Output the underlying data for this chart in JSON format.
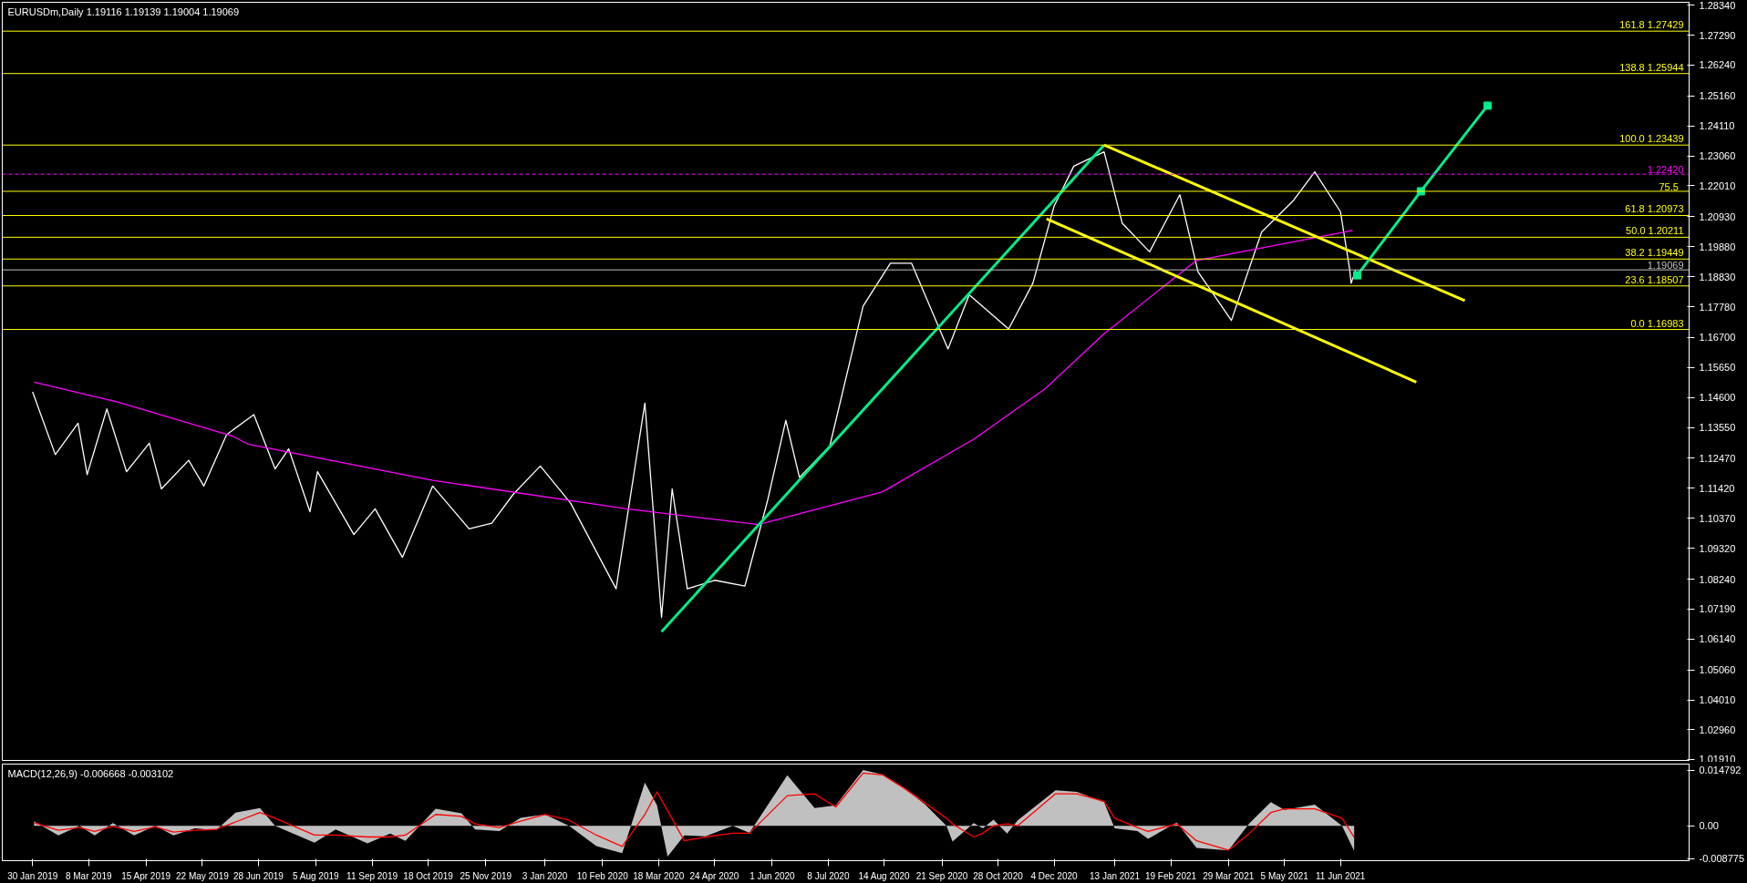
{
  "chart_data": [
    {
      "type": "line",
      "title": "EURUSDm,Daily  1.19116 1.19139 1.19004 1.19069",
      "xlim": [
        "2019-01-10",
        "2022-01-27"
      ],
      "ylim": [
        1.0189,
        1.2844
      ],
      "yticks": [
        {
          "value": 1.2834,
          "label": "1.28340"
        },
        {
          "value": 1.2729,
          "label": "1.27290"
        },
        {
          "value": 1.2624,
          "label": "1.26240"
        },
        {
          "value": 1.2516,
          "label": "1.25160"
        },
        {
          "value": 1.2411,
          "label": "1.24110"
        },
        {
          "value": 1.2306,
          "label": "1.23060"
        },
        {
          "value": 1.2201,
          "label": "1.22010"
        },
        {
          "value": 1.2093,
          "label": "1.20930"
        },
        {
          "value": 1.1988,
          "label": "1.19880"
        },
        {
          "value": 1.1883,
          "label": "1.18830"
        },
        {
          "value": 1.1778,
          "label": "1.17780"
        },
        {
          "value": 1.167,
          "label": "1.16700"
        },
        {
          "value": 1.1565,
          "label": "1.15650"
        },
        {
          "value": 1.146,
          "label": "1.14600"
        },
        {
          "value": 1.1355,
          "label": "1.13550"
        },
        {
          "value": 1.1247,
          "label": "1.12470"
        },
        {
          "value": 1.1142,
          "label": "1.11420"
        },
        {
          "value": 1.1037,
          "label": "1.10370"
        },
        {
          "value": 1.0932,
          "label": "1.09320"
        },
        {
          "value": 1.0824,
          "label": "1.08240"
        },
        {
          "value": 1.0719,
          "label": "1.07190"
        },
        {
          "value": 1.0614,
          "label": "1.06140"
        },
        {
          "value": 1.0506,
          "label": "1.05060"
        },
        {
          "value": 1.0401,
          "label": "1.04010"
        },
        {
          "value": 1.0296,
          "label": "1.02960"
        },
        {
          "value": 1.0191,
          "label": "1.01910"
        }
      ],
      "tick_labels": "y",
      "grid": false,
      "annotations": [
        {
          "text": "75.5",
          "x": "2022-01-20",
          "y": 1.2182
        }
      ],
      "series": [
        {
          "color": "#ffffff",
          "x": [
            "2019-01-30",
            "2019-02-14",
            "2019-03-01",
            "2019-03-07",
            "2019-03-20",
            "2019-04-02",
            "2019-04-17",
            "2019-04-25",
            "2019-05-13",
            "2019-05-23",
            "2019-06-07",
            "2019-06-25",
            "2019-07-09",
            "2019-07-18",
            "2019-08-01",
            "2019-08-06",
            "2019-08-30",
            "2019-09-13",
            "2019-10-01",
            "2019-10-21",
            "2019-11-14",
            "2019-11-29",
            "2019-12-13",
            "2019-12-31",
            "2020-01-20",
            "2020-02-19",
            "2020-03-09",
            "2020-03-20",
            "2020-03-27",
            "2020-04-06",
            "2020-04-24",
            "2020-05-14",
            "2020-05-29",
            "2020-06-10",
            "2020-06-19",
            "2020-07-09",
            "2020-07-31",
            "2020-08-18",
            "2020-09-01",
            "2020-09-25",
            "2020-10-09",
            "2020-11-04",
            "2020-11-20",
            "2020-12-04",
            "2020-12-17",
            "2021-01-06",
            "2021-01-18",
            "2021-02-05",
            "2021-02-25",
            "2021-03-09",
            "2021-03-31",
            "2021-04-20",
            "2021-05-11",
            "2021-05-25",
            "2021-06-11",
            "2021-06-17",
            "2021-06-18",
            "2021-06-21"
          ],
          "values": [
            1.148,
            1.126,
            1.137,
            1.119,
            1.142,
            1.12,
            1.13,
            1.114,
            1.124,
            1.115,
            1.133,
            1.14,
            1.121,
            1.128,
            1.106,
            1.12,
            1.098,
            1.107,
            1.09,
            1.115,
            1.1,
            1.102,
            1.112,
            1.122,
            1.109,
            1.079,
            1.144,
            1.069,
            1.114,
            1.079,
            1.082,
            1.08,
            1.11,
            1.138,
            1.118,
            1.129,
            1.178,
            1.193,
            1.193,
            1.163,
            1.182,
            1.17,
            1.186,
            1.213,
            1.227,
            1.232,
            1.207,
            1.197,
            1.217,
            1.19,
            1.173,
            1.204,
            1.215,
            1.225,
            1.211,
            1.191,
            1.186,
            1.19069
          ]
        },
        {
          "color": "#ff00ff",
          "x": [
            "2019-01-31",
            "2019-03-27",
            "2019-06-11",
            "2019-06-21",
            "2019-10-21",
            "2020-02-26",
            "2020-05-23",
            "2020-08-13",
            "2020-10-12",
            "2020-11-28",
            "2021-01-06",
            "2021-03-08",
            "2021-06-19"
          ],
          "values": [
            1.1514,
            1.1444,
            1.1325,
            1.1297,
            1.117,
            1.107,
            1.1015,
            1.113,
            1.1314,
            1.149,
            1.1683,
            1.194,
            1.2045
          ]
        },
        {
          "color": "#00ee88",
          "x": [
            "2020-03-20",
            "2021-01-06"
          ],
          "values": [
            1.064,
            1.2344
          ]
        },
        {
          "color": "#ffff00",
          "x": [
            "2021-01-06",
            "2021-09-01"
          ],
          "values": [
            1.2344,
            1.1799
          ]
        },
        {
          "color": "#ffff00",
          "x": [
            "2020-11-29",
            "2021-07-31"
          ],
          "values": [
            1.2086,
            1.1514
          ]
        },
        {
          "color": "#00ee88",
          "marker": "square",
          "x": [
            "2021-06-22",
            "2021-08-03",
            "2021-09-16"
          ],
          "values": [
            1.1888,
            1.2182,
            1.2482
          ]
        }
      ],
      "ref_lines": [
        {
          "axis": "y",
          "value": 1.27429,
          "label": "161.8 1.27429",
          "color": "#ffff00"
        },
        {
          "axis": "y",
          "value": 1.25944,
          "label": "138.8 1.25944",
          "color": "#ffff00"
        },
        {
          "axis": "y",
          "value": 1.23439,
          "label": "100.0 1.23439",
          "color": "#ffff00"
        },
        {
          "axis": "y",
          "value": 1.2182,
          "color": "#ffff00"
        },
        {
          "axis": "y",
          "value": 1.20973,
          "label": "61.8 1.20973",
          "color": "#ffff00"
        },
        {
          "axis": "y",
          "value": 1.20211,
          "label": "50.0 1.20211",
          "color": "#ffff00"
        },
        {
          "axis": "y",
          "value": 1.19449,
          "label": "38.2 1.19449",
          "color": "#ffff00"
        },
        {
          "axis": "y",
          "value": 1.18507,
          "label": "23.6 1.18507",
          "color": "#ffff00"
        },
        {
          "axis": "y",
          "value": 1.16983,
          "label": "0.0 1.16983",
          "color": "#ffff00"
        },
        {
          "axis": "y",
          "value": 1.2242,
          "label": "1.22420",
          "color": "#ff00ff",
          "line_style": "dashed"
        },
        {
          "axis": "y",
          "value": 1.19069,
          "label": "1.19069",
          "color": "#c0c0c0"
        }
      ]
    },
    {
      "type": "line",
      "title": "MACD(12,26,9) -0.006668 -0.003102",
      "xlim": [
        "2019-01-10",
        "2022-01-27"
      ],
      "ylim": [
        -0.0093,
        0.0164
      ],
      "yticks": [
        0.014792,
        {
          "value": 0,
          "label": "0.00"
        },
        -0.008775
      ],
      "grid": false,
      "xticks": [
        {
          "value": "2019-01-30",
          "label": "30 Jan 2019"
        },
        {
          "value": "2019-03-08",
          "label": "8 Mar 2019"
        },
        {
          "value": "2019-04-15",
          "label": "15 Apr 2019"
        },
        {
          "value": "2019-05-22",
          "label": "22 May 2019"
        },
        {
          "value": "2019-06-28",
          "label": "28 Jun 2019"
        },
        {
          "value": "2019-08-05",
          "label": "5 Aug 2019"
        },
        {
          "value": "2019-09-11",
          "label": "11 Sep 2019"
        },
        {
          "value": "2019-10-18",
          "label": "18 Oct 2019"
        },
        {
          "value": "2019-11-25",
          "label": "25 Nov 2019"
        },
        {
          "value": "2020-01-03",
          "label": "3 Jan 2020"
        },
        {
          "value": "2020-02-10",
          "label": "10 Feb 2020"
        },
        {
          "value": "2020-03-18",
          "label": "18 Mar 2020"
        },
        {
          "value": "2020-04-24",
          "label": "24 Apr 2020"
        },
        {
          "value": "2020-06-01",
          "label": "1 Jun 2020"
        },
        {
          "value": "2020-07-08",
          "label": "8 Jul 2020"
        },
        {
          "value": "2020-08-14",
          "label": "14 Aug 2020"
        },
        {
          "value": "2020-09-21",
          "label": "21 Sep 2020"
        },
        {
          "value": "2020-10-28",
          "label": "28 Oct 2020"
        },
        {
          "value": "2020-12-04",
          "label": "4 Dec 2020"
        },
        {
          "value": "2021-01-13",
          "label": "13 Jan 2021"
        },
        {
          "value": "2021-02-19",
          "label": "19 Feb 2021"
        },
        {
          "value": "2021-03-29",
          "label": "29 Mar 2021"
        },
        {
          "value": "2021-05-05",
          "label": "5 May 2021"
        },
        {
          "value": "2021-06-11",
          "label": "11 Jun 2021"
        }
      ],
      "x": [
        "2019-01-31",
        "2019-02-16",
        "2019-03-02",
        "2019-03-12",
        "2019-03-24",
        "2019-04-07",
        "2019-04-21",
        "2019-05-03",
        "2019-05-17",
        "2019-05-31",
        "2019-06-13",
        "2019-06-29",
        "2019-07-09",
        "2019-08-04",
        "2019-08-18",
        "2019-09-08",
        "2019-09-23",
        "2019-10-03",
        "2019-10-23",
        "2019-11-09",
        "2019-11-18",
        "2019-12-04",
        "2019-12-18",
        "2020-01-03",
        "2020-01-19",
        "2020-02-06",
        "2020-02-23",
        "2020-03-09",
        "2020-03-17",
        "2020-03-24",
        "2020-04-04",
        "2020-04-18",
        "2020-05-06",
        "2020-05-17",
        "2020-06-11",
        "2020-06-29",
        "2020-07-13",
        "2020-07-31",
        "2020-08-13",
        "2020-08-27",
        "2020-09-10",
        "2020-09-24",
        "2020-09-28",
        "2020-10-12",
        "2020-10-18",
        "2020-10-25",
        "2020-11-03",
        "2020-11-10",
        "2020-12-05",
        "2020-12-19",
        "2021-01-06",
        "2021-01-13",
        "2021-01-28",
        "2021-02-04",
        "2021-02-23",
        "2021-03-08",
        "2021-03-29",
        "2021-04-12",
        "2021-04-26",
        "2021-05-05",
        "2021-05-25",
        "2021-06-12",
        "2021-06-20"
      ],
      "series": [
        {
          "type": "area",
          "color": "#c0c0c0",
          "values": [
            0.0012,
            -0.0026,
            0,
            -0.0026,
            0.0007,
            -0.0026,
            0,
            -0.0026,
            -0.0007,
            -0.0012,
            0.0035,
            0.0047,
            0,
            -0.0045,
            -0.001,
            -0.0047,
            -0.0021,
            -0.004,
            0.0045,
            0.0033,
            -0.001,
            -0.0014,
            0.0021,
            0.003,
            0,
            -0.0054,
            -0.0073,
            0.0115,
            0.0054,
            -0.0082,
            -0.0026,
            -0.0028,
            0,
            -0.0019,
            0.0134,
            0.0047,
            0.0054,
            0.0148,
            0.0136,
            0.0101,
            0.0056,
            0,
            -0.0042,
            0.0007,
            -0.0007,
            0.0016,
            -0.0021,
            0.0014,
            0.0094,
            0.009,
            0.0063,
            -0.0007,
            -0.0014,
            -0.0035,
            0.0009,
            -0.0059,
            -0.0066,
            0.0007,
            0.0063,
            0.0042,
            0.0056,
            0,
            -0.006668
          ]
        },
        {
          "type": "line",
          "color": "#ff0000",
          "values": [
            0.0008,
            -0.0012,
            -0.0005,
            -0.0015,
            -0.0002,
            -0.0015,
            -0.0003,
            -0.0017,
            -0.0012,
            -0.001,
            0.001,
            0.0035,
            0.002,
            -0.0025,
            -0.0025,
            -0.003,
            -0.003,
            -0.0025,
            0.003,
            0.0025,
            0.0005,
            -0.0005,
            0.0012,
            0.003,
            0.0015,
            -0.0025,
            -0.0055,
            0.003,
            0.009,
            0.004,
            -0.004,
            -0.003,
            -0.002,
            -0.002,
            0.008,
            0.0085,
            0.005,
            0.014,
            0.0135,
            0.01,
            0.006,
            0.002,
            0.0005,
            -0.003,
            -0.002,
            0,
            0.0005,
            0,
            0.0085,
            0.0085,
            0.0065,
            0.002,
            -0.0005,
            -0.0015,
            0.0005,
            -0.004,
            -0.0065,
            -0.002,
            0.0035,
            0.0045,
            0.0045,
            0.002,
            -0.003102
          ]
        }
      ]
    }
  ]
}
